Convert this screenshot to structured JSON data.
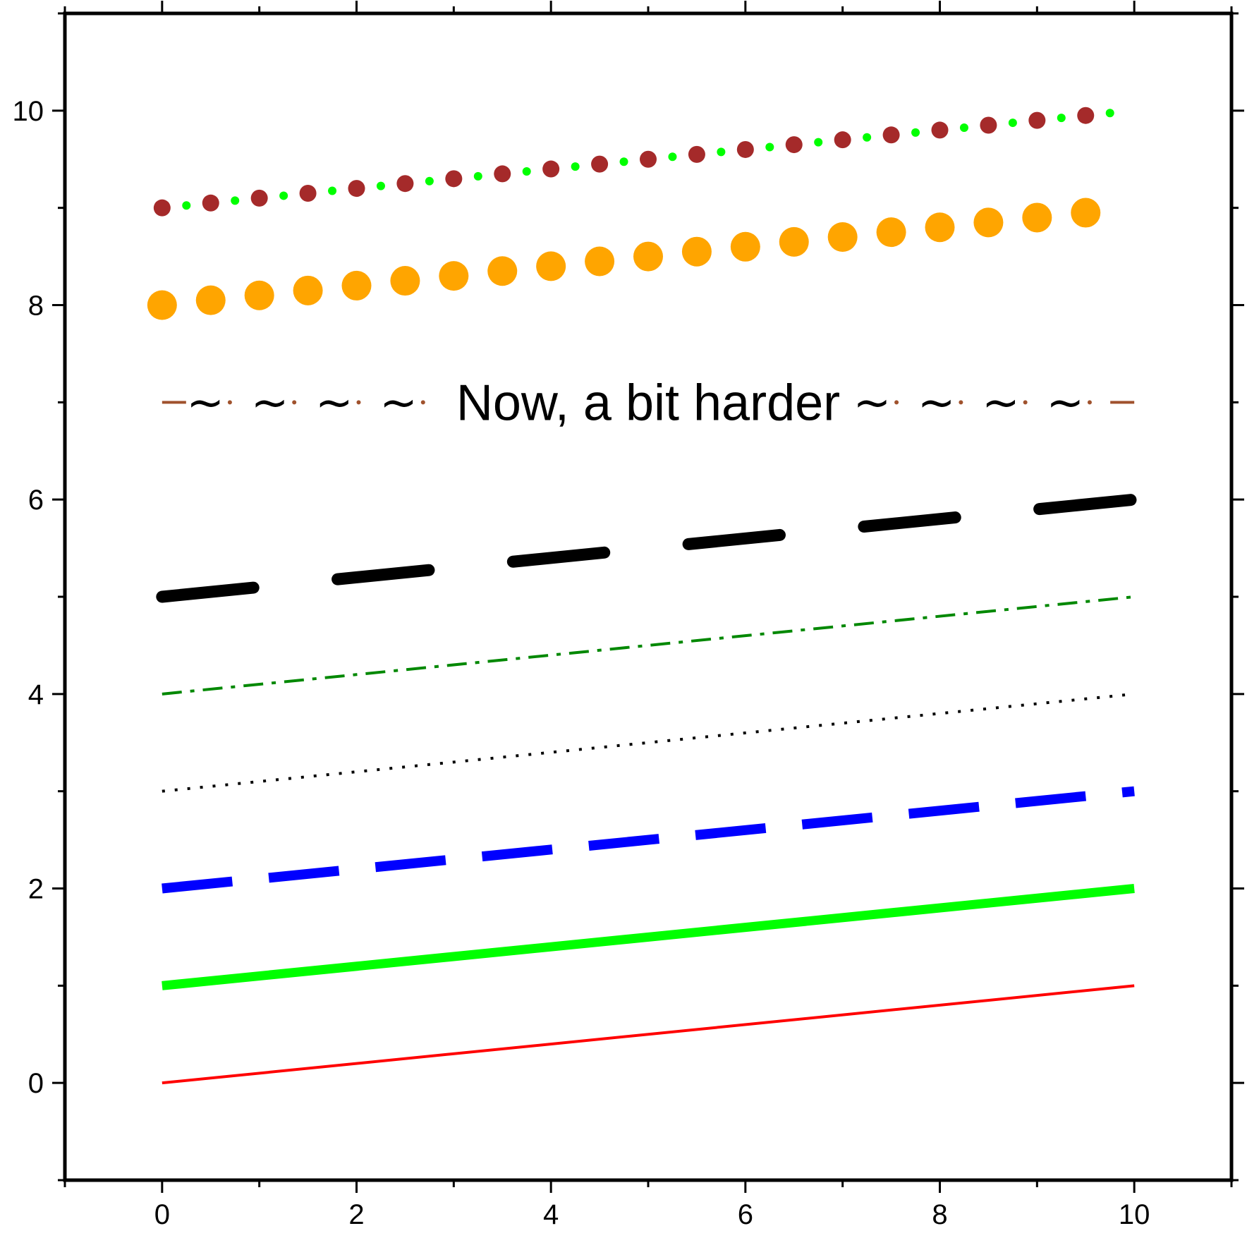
{
  "chart_data": {
    "type": "line",
    "title": "",
    "xlabel": "",
    "ylabel": "",
    "xlim": [
      -1,
      11
    ],
    "ylim": [
      -1,
      11
    ],
    "x_ticks": [
      0,
      2,
      4,
      6,
      8,
      10
    ],
    "y_ticks": [
      0,
      2,
      4,
      6,
      8,
      10
    ],
    "grid": false,
    "legend": "none",
    "series": [
      {
        "x": [
          0,
          10
        ],
        "y": [
          0,
          1
        ],
        "style": "solid",
        "color": "#ff0000"
      },
      {
        "x": [
          0,
          10
        ],
        "y": [
          1,
          2
        ],
        "style": "solid-thick",
        "color": "#00ff00"
      },
      {
        "x": [
          0,
          10
        ],
        "y": [
          2,
          3
        ],
        "style": "dashed",
        "color": "#0000ff"
      },
      {
        "x": [
          0,
          10
        ],
        "y": [
          3,
          4
        ],
        "style": "dotted",
        "color": "#000000"
      },
      {
        "x": [
          0,
          10
        ],
        "y": [
          4,
          5
        ],
        "style": "dash-dot",
        "color": "#008800"
      },
      {
        "x": [
          0,
          10
        ],
        "y": [
          5,
          6
        ],
        "style": "long-dash-rounded",
        "color": "#000000"
      },
      {
        "x": [
          0,
          10
        ],
        "y": [
          7,
          7
        ],
        "style": "decorated-text",
        "color": "#a0522d"
      },
      {
        "x": [
          0,
          10
        ],
        "y": [
          8,
          9
        ],
        "style": "large-dots",
        "color": "#ffa500"
      },
      {
        "x": [
          0,
          10
        ],
        "y": [
          9,
          10
        ],
        "style": "alternating-dots",
        "color": "#a52a2a",
        "color2": "#00ff00"
      }
    ],
    "annotations": [
      {
        "text": "Now, a bit harder",
        "x": 5,
        "y": 7
      }
    ]
  }
}
